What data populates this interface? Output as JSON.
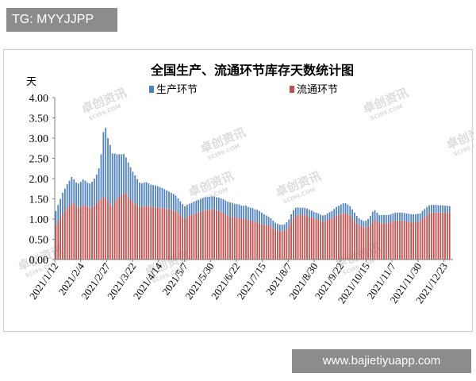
{
  "overlay": {
    "top_left_label": "TG: MYYJJPP",
    "bottom_right_label": "www.bajietiyuapp.com"
  },
  "watermark": {
    "brand_text": "卓创资讯",
    "brand_sub": "SCI99.COM"
  },
  "colors": {
    "production": "#4f81bd",
    "circulation": "#c0504d"
  },
  "chart_data": {
    "type": "bar",
    "stacked": true,
    "title": "全国生产、流通环节库存天数统计图",
    "ylabel": "天",
    "xlabel": "",
    "ylim": [
      0,
      4
    ],
    "yticks": [
      "0.00",
      "0.50",
      "1.00",
      "1.50",
      "2.00",
      "2.50",
      "3.00",
      "3.50",
      "4.00"
    ],
    "xtick_labels": [
      "2021/1/12",
      "2021/2/4",
      "2021/2/27",
      "2021/3/22",
      "2021/4/14",
      "2021/5/7",
      "2021/5/30",
      "2021/6/22",
      "2021/7/15",
      "2021/8/7",
      "2021/8/30",
      "2021/9/22",
      "2021/10/15",
      "2021/11/7",
      "2021/11/30",
      "2021/12/23"
    ],
    "x_start": "2021/1/12",
    "x_end": "2021/12/31",
    "legend": [
      "生产环节",
      "流通环节"
    ],
    "legend_position": "top",
    "grid": false,
    "series": [
      {
        "name": "生产环节",
        "values": [
          0.35,
          0.4,
          0.45,
          0.5,
          0.55,
          0.58,
          0.6,
          0.62,
          0.6,
          0.58,
          0.6,
          0.62,
          0.63,
          0.62,
          0.6,
          0.6,
          0.62,
          0.65,
          0.7,
          0.8,
          1.1,
          1.6,
          1.73,
          1.55,
          1.45,
          1.3,
          1.2,
          1.1,
          1.05,
          1.0,
          0.95,
          0.9,
          0.85,
          0.8,
          0.75,
          0.7,
          0.65,
          0.6,
          0.58,
          0.58,
          0.58,
          0.56,
          0.55,
          0.54,
          0.53,
          0.52,
          0.51,
          0.5,
          0.48,
          0.46,
          0.44,
          0.42,
          0.4,
          0.38,
          0.36,
          0.34,
          0.32,
          0.3,
          0.3,
          0.3,
          0.3,
          0.31,
          0.31,
          0.31,
          0.32,
          0.32,
          0.32,
          0.32,
          0.32,
          0.32,
          0.32,
          0.32,
          0.33,
          0.33,
          0.34,
          0.34,
          0.35,
          0.35,
          0.35,
          0.34,
          0.34,
          0.34,
          0.33,
          0.33,
          0.33,
          0.32,
          0.32,
          0.32,
          0.31,
          0.31,
          0.3,
          0.28,
          0.26,
          0.24,
          0.22,
          0.2,
          0.18,
          0.17,
          0.16,
          0.16,
          0.16,
          0.15,
          0.16,
          0.17,
          0.2,
          0.2,
          0.2,
          0.19,
          0.18,
          0.18,
          0.18,
          0.18,
          0.17,
          0.17,
          0.16,
          0.16,
          0.16,
          0.15,
          0.15,
          0.15,
          0.16,
          0.17,
          0.18,
          0.2,
          0.22,
          0.23,
          0.24,
          0.24,
          0.24,
          0.24,
          0.24,
          0.22,
          0.2,
          0.18,
          0.16,
          0.15,
          0.15,
          0.16,
          0.18,
          0.22,
          0.26,
          0.24,
          0.22,
          0.2,
          0.2,
          0.2,
          0.2,
          0.2,
          0.2,
          0.2,
          0.2,
          0.2,
          0.2,
          0.2,
          0.2,
          0.2,
          0.2,
          0.2,
          0.2,
          0.2,
          0.2,
          0.2,
          0.2,
          0.2,
          0.2,
          0.2,
          0.19,
          0.19,
          0.19,
          0.18,
          0.18,
          0.18,
          0.17,
          0.17,
          0.17,
          0.17
        ]
      },
      {
        "name": "流通环节",
        "values": [
          0.85,
          0.95,
          1.05,
          1.15,
          1.2,
          1.28,
          1.35,
          1.42,
          1.38,
          1.32,
          1.28,
          1.3,
          1.35,
          1.33,
          1.3,
          1.28,
          1.3,
          1.35,
          1.4,
          1.45,
          1.5,
          1.55,
          1.52,
          1.45,
          1.38,
          1.32,
          1.42,
          1.5,
          1.55,
          1.6,
          1.66,
          1.62,
          1.55,
          1.48,
          1.42,
          1.38,
          1.34,
          1.3,
          1.3,
          1.32,
          1.33,
          1.32,
          1.3,
          1.3,
          1.3,
          1.29,
          1.28,
          1.27,
          1.26,
          1.25,
          1.24,
          1.23,
          1.22,
          1.2,
          1.15,
          1.1,
          1.05,
          1.02,
          1.05,
          1.08,
          1.1,
          1.12,
          1.14,
          1.16,
          1.18,
          1.2,
          1.22,
          1.22,
          1.23,
          1.24,
          1.24,
          1.22,
          1.2,
          1.18,
          1.15,
          1.12,
          1.08,
          1.06,
          1.05,
          1.04,
          1.03,
          1.02,
          1.0,
          1.0,
          1.0,
          0.98,
          0.96,
          0.95,
          0.93,
          0.92,
          0.9,
          0.88,
          0.86,
          0.85,
          0.84,
          0.82,
          0.78,
          0.74,
          0.72,
          0.7,
          0.7,
          0.72,
          0.76,
          0.82,
          0.92,
          1.02,
          1.08,
          1.1,
          1.1,
          1.1,
          1.1,
          1.08,
          1.06,
          1.04,
          1.02,
          1.0,
          0.98,
          0.96,
          0.94,
          0.95,
          0.98,
          1.0,
          1.02,
          1.05,
          1.08,
          1.1,
          1.12,
          1.15,
          1.15,
          1.12,
          1.08,
          1.02,
          0.96,
          0.9,
          0.86,
          0.83,
          0.8,
          0.8,
          0.82,
          0.86,
          0.92,
          0.98,
          0.94,
          0.9,
          0.9,
          0.9,
          0.9,
          0.9,
          0.92,
          0.94,
          0.96,
          0.96,
          0.96,
          0.96,
          0.95,
          0.94,
          0.93,
          0.92,
          0.92,
          0.92,
          0.93,
          0.94,
          1.0,
          1.05,
          1.1,
          1.14,
          1.16,
          1.16,
          1.16,
          1.16,
          1.16,
          1.16,
          1.16,
          1.16,
          1.15
        ]
      }
    ]
  }
}
